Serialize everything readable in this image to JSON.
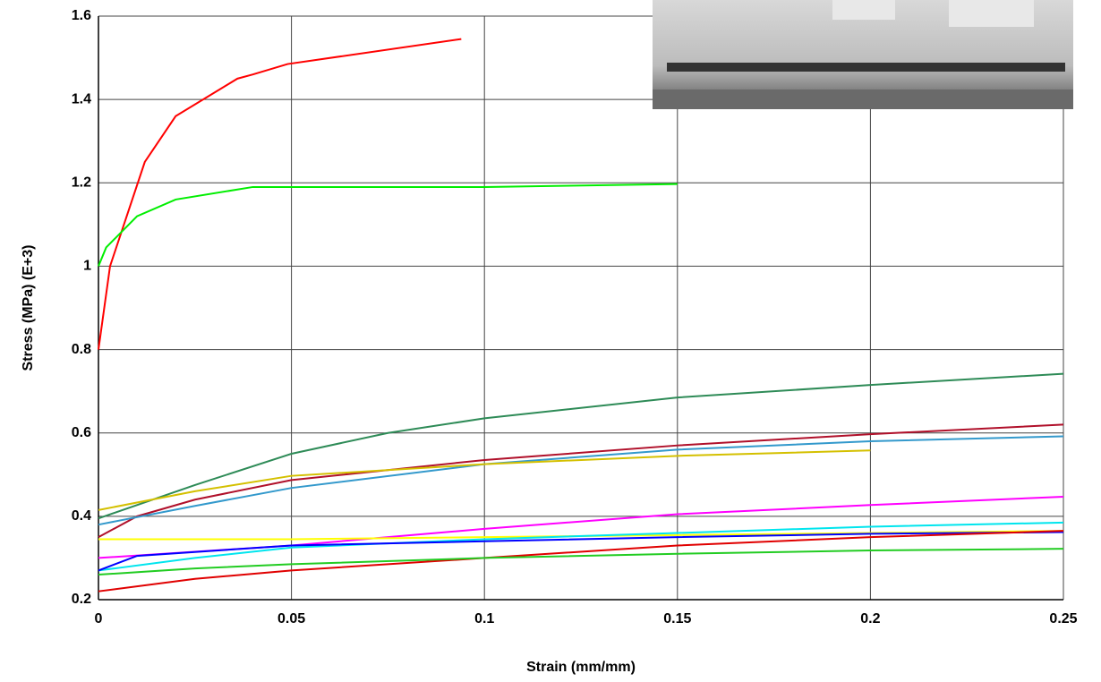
{
  "chart_data": {
    "type": "line",
    "x_label": "Strain (mm/mm)",
    "y_label": "Stress (MPa) (E+3)",
    "xlim": [
      0,
      0.25
    ],
    "ylim": [
      0.2,
      1.6
    ],
    "xticks": [
      0,
      0.05,
      0.1,
      0.15,
      0.2,
      0.25
    ],
    "yticks": [
      0.2,
      0.4,
      0.6,
      0.8,
      1,
      1.2,
      1.4,
      1.6
    ],
    "grid": true,
    "series": [
      {
        "color": "#ff0000",
        "x": [
          0,
          0.003,
          0.012,
          0.02,
          0.036,
          0.04,
          0.049,
          0.094
        ],
        "values": [
          0.8,
          1.0,
          1.25,
          1.36,
          1.45,
          1.46,
          1.485,
          1.545
        ]
      },
      {
        "color": "#00ee00",
        "x": [
          0,
          0.002,
          0.01,
          0.02,
          0.04,
          0.05,
          0.1,
          0.15
        ],
        "values": [
          1.0,
          1.045,
          1.12,
          1.16,
          1.19,
          1.19,
          1.19,
          1.197
        ]
      },
      {
        "color": "#2e8b57",
        "x": [
          0,
          0.025,
          0.05,
          0.075,
          0.1,
          0.15,
          0.2,
          0.25
        ],
        "values": [
          0.395,
          0.475,
          0.55,
          0.6,
          0.635,
          0.685,
          0.715,
          0.742
        ]
      },
      {
        "color": "#b0102a",
        "x": [
          0,
          0.01,
          0.025,
          0.05,
          0.1,
          0.15,
          0.2,
          0.25
        ],
        "values": [
          0.35,
          0.4,
          0.44,
          0.487,
          0.535,
          0.57,
          0.597,
          0.62
        ]
      },
      {
        "color": "#3399cc",
        "x": [
          0,
          0.025,
          0.05,
          0.1,
          0.15,
          0.2,
          0.25
        ],
        "values": [
          0.38,
          0.425,
          0.468,
          0.525,
          0.56,
          0.58,
          0.592
        ]
      },
      {
        "color": "#d4c000",
        "x": [
          0,
          0.025,
          0.05,
          0.1,
          0.15,
          0.2
        ],
        "values": [
          0.415,
          0.46,
          0.497,
          0.525,
          0.545,
          0.558
        ]
      },
      {
        "color": "#ff00ff",
        "x": [
          0,
          0.05,
          0.1,
          0.15,
          0.2,
          0.25
        ],
        "values": [
          0.3,
          0.33,
          0.37,
          0.405,
          0.427,
          0.447
        ]
      },
      {
        "color": "#ffff00",
        "x": [
          0,
          0.05,
          0.1,
          0.15,
          0.2,
          0.25
        ],
        "values": [
          0.345,
          0.345,
          0.35,
          0.355,
          0.36,
          0.365
        ]
      },
      {
        "color": "#00e5ee",
        "x": [
          0,
          0.025,
          0.05,
          0.1,
          0.15,
          0.2,
          0.25
        ],
        "values": [
          0.27,
          0.3,
          0.325,
          0.345,
          0.36,
          0.375,
          0.385
        ]
      },
      {
        "color": "#0000ff",
        "x": [
          0,
          0.01,
          0.05,
          0.1,
          0.15,
          0.2,
          0.25
        ],
        "values": [
          0.27,
          0.305,
          0.33,
          0.34,
          0.35,
          0.358,
          0.362
        ]
      },
      {
        "color": "#e00000",
        "x": [
          0,
          0.025,
          0.05,
          0.1,
          0.15,
          0.2,
          0.25
        ],
        "values": [
          0.22,
          0.25,
          0.27,
          0.3,
          0.33,
          0.35,
          0.365
        ]
      },
      {
        "color": "#22cc22",
        "x": [
          0,
          0.025,
          0.05,
          0.1,
          0.15,
          0.2,
          0.25
        ],
        "values": [
          0.26,
          0.275,
          0.285,
          0.3,
          0.31,
          0.318,
          0.322
        ]
      }
    ]
  }
}
